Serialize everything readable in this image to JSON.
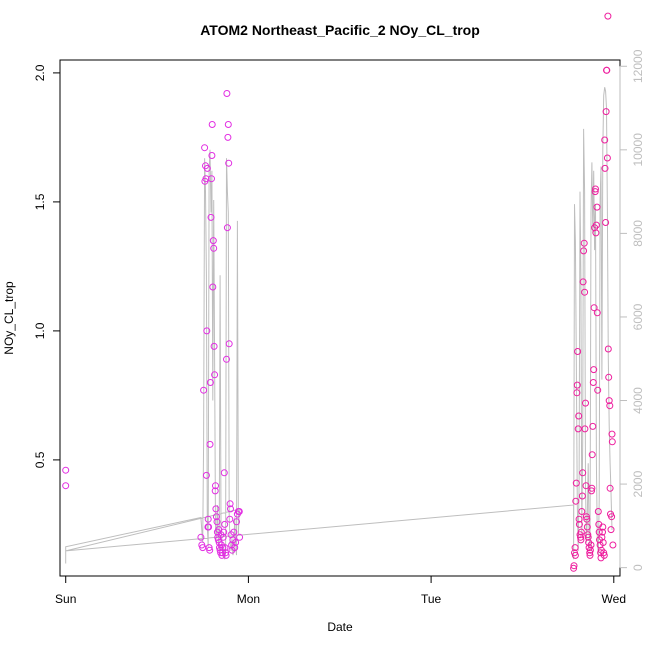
{
  "chart_data": {
    "type": "scatter",
    "title": "ATOM2 Northeast_Pacific_2 NOy_CL_trop",
    "xlabel": "Date",
    "ylabel": "NOy_CL_trop",
    "x_ticks": [
      "Sun",
      "Mon",
      "Tue",
      "Wed"
    ],
    "xlim": [
      -0.0313,
      3.034
    ],
    "ylim": [
      0.05,
      2.05
    ],
    "y_ticks": [
      0.5,
      1.0,
      1.5,
      2.0
    ],
    "y_tick_labels": [
      "0.5",
      "1.0",
      "1.5",
      "2.0"
    ],
    "y2lim": [
      -200,
      12150
    ],
    "y2_ticks": [
      0,
      2000,
      4000,
      6000,
      8000,
      10000,
      12000
    ],
    "y2_tick_labels": [
      "0",
      "2000",
      "4000",
      "6000",
      "8000",
      "10000",
      "12000"
    ],
    "grid": false,
    "colors": {
      "points_day1": "#e22ee2",
      "points_day3": "#ee1e9e",
      "secondary_line": "#bebebe",
      "secondary_axis": "#bebebe"
    },
    "series": [
      {
        "marker": "open-circle",
        "axis": "left",
        "points": [
          [
            0.0,
            0.46
          ],
          [
            0.0,
            0.4
          ],
          [
            0.74,
            0.2
          ],
          [
            0.745,
            0.17
          ],
          [
            0.75,
            0.16
          ],
          [
            0.755,
            0.77
          ],
          [
            0.76,
            1.71
          ],
          [
            0.762,
            1.58
          ],
          [
            0.765,
            1.64
          ],
          [
            0.768,
            1.59
          ],
          [
            0.77,
            0.44
          ],
          [
            0.772,
            1.0
          ],
          [
            0.775,
            1.63
          ],
          [
            0.778,
            0.24
          ],
          [
            0.78,
            0.27
          ],
          [
            0.782,
            0.24
          ],
          [
            0.785,
            0.16
          ],
          [
            0.788,
            0.15
          ],
          [
            0.79,
            0.56
          ],
          [
            0.792,
            0.8
          ],
          [
            0.795,
            1.44
          ],
          [
            0.798,
            1.59
          ],
          [
            0.8,
            1.68
          ],
          [
            0.802,
            1.8
          ],
          [
            0.805,
            1.17
          ],
          [
            0.808,
            1.35
          ],
          [
            0.81,
            1.32
          ],
          [
            0.812,
            0.94
          ],
          [
            0.815,
            0.83
          ],
          [
            0.818,
            0.38
          ],
          [
            0.82,
            0.4
          ],
          [
            0.822,
            0.31
          ],
          [
            0.825,
            0.28
          ],
          [
            0.828,
            0.26
          ],
          [
            0.83,
            0.22
          ],
          [
            0.832,
            0.2
          ],
          [
            0.835,
            0.19
          ],
          [
            0.838,
            0.23
          ],
          [
            0.84,
            0.18
          ],
          [
            0.842,
            0.16
          ],
          [
            0.845,
            0.15
          ],
          [
            0.848,
            0.14
          ],
          [
            0.85,
            0.21
          ],
          [
            0.852,
            0.17
          ],
          [
            0.855,
            0.13
          ],
          [
            0.858,
            0.14
          ],
          [
            0.86,
            0.16
          ],
          [
            0.862,
            0.2
          ],
          [
            0.865,
            0.22
          ],
          [
            0.868,
            0.45
          ],
          [
            0.87,
            0.25
          ],
          [
            0.872,
            0.16
          ],
          [
            0.875,
            0.14
          ],
          [
            0.878,
            0.13
          ],
          [
            0.88,
            0.89
          ],
          [
            0.882,
            1.92
          ],
          [
            0.885,
            1.4
          ],
          [
            0.888,
            1.75
          ],
          [
            0.89,
            1.8
          ],
          [
            0.892,
            1.65
          ],
          [
            0.895,
            0.95
          ],
          [
            0.898,
            0.27
          ],
          [
            0.9,
            0.33
          ],
          [
            0.902,
            0.31
          ],
          [
            0.905,
            0.21
          ],
          [
            0.908,
            0.17
          ],
          [
            0.91,
            0.15
          ],
          [
            0.915,
            0.19
          ],
          [
            0.92,
            0.22
          ],
          [
            0.925,
            0.16
          ],
          [
            0.93,
            0.18
          ],
          [
            0.935,
            0.26
          ],
          [
            0.94,
            0.29
          ],
          [
            0.945,
            0.3
          ],
          [
            0.95,
            0.3
          ],
          [
            0.952,
            0.2
          ],
          [
            2.78,
            0.08
          ],
          [
            2.782,
            0.09
          ],
          [
            2.785,
            0.14
          ],
          [
            2.788,
            0.16
          ],
          [
            2.79,
            0.13
          ],
          [
            2.792,
            0.34
          ],
          [
            2.795,
            0.41
          ],
          [
            2.798,
            0.76
          ],
          [
            2.8,
            0.79
          ],
          [
            2.802,
            0.92
          ],
          [
            2.805,
            0.62
          ],
          [
            2.808,
            0.67
          ],
          [
            2.81,
            0.27
          ],
          [
            2.812,
            0.25
          ],
          [
            2.815,
            0.21
          ],
          [
            2.818,
            0.2
          ],
          [
            2.82,
            0.19
          ],
          [
            2.822,
            0.22
          ],
          [
            2.825,
            0.3
          ],
          [
            2.828,
            0.36
          ],
          [
            2.83,
            0.45
          ],
          [
            2.832,
            1.19
          ],
          [
            2.835,
            1.31
          ],
          [
            2.838,
            1.34
          ],
          [
            2.84,
            1.15
          ],
          [
            2.842,
            0.62
          ],
          [
            2.845,
            0.72
          ],
          [
            2.848,
            0.4
          ],
          [
            2.85,
            0.28
          ],
          [
            2.852,
            0.27
          ],
          [
            2.855,
            0.24
          ],
          [
            2.858,
            0.21
          ],
          [
            2.86,
            0.2
          ],
          [
            2.862,
            0.18
          ],
          [
            2.865,
            0.16
          ],
          [
            2.868,
            0.14
          ],
          [
            2.87,
            0.13
          ],
          [
            2.872,
            0.15
          ],
          [
            2.875,
            0.17
          ],
          [
            2.878,
            0.38
          ],
          [
            2.88,
            0.39
          ],
          [
            2.882,
            0.52
          ],
          [
            2.885,
            0.63
          ],
          [
            2.888,
            0.8
          ],
          [
            2.89,
            0.85
          ],
          [
            2.892,
            1.09
          ],
          [
            2.895,
            1.4
          ],
          [
            2.898,
            1.54
          ],
          [
            2.9,
            1.55
          ],
          [
            2.902,
            1.38
          ],
          [
            2.905,
            1.41
          ],
          [
            2.908,
            1.48
          ],
          [
            2.91,
            1.07
          ],
          [
            2.912,
            0.77
          ],
          [
            2.915,
            0.3
          ],
          [
            2.918,
            0.25
          ],
          [
            2.92,
            0.22
          ],
          [
            2.922,
            0.19
          ],
          [
            2.925,
            0.17
          ],
          [
            2.928,
            0.14
          ],
          [
            2.93,
            0.12
          ],
          [
            2.932,
            0.15
          ],
          [
            2.935,
            0.2
          ],
          [
            2.938,
            0.22
          ],
          [
            2.94,
            0.24
          ],
          [
            2.942,
            0.18
          ],
          [
            2.945,
            0.14
          ],
          [
            2.948,
            0.13
          ],
          [
            2.95,
            1.74
          ],
          [
            2.952,
            1.63
          ],
          [
            2.955,
            1.42
          ],
          [
            2.958,
            1.85
          ],
          [
            2.96,
            2.01
          ],
          [
            2.962,
            2.01
          ],
          [
            2.965,
            1.67
          ],
          [
            2.968,
            2.22
          ],
          [
            2.97,
            0.93
          ],
          [
            2.972,
            0.82
          ],
          [
            2.975,
            0.73
          ],
          [
            2.978,
            0.71
          ],
          [
            2.98,
            0.39
          ],
          [
            2.982,
            0.29
          ],
          [
            2.985,
            0.23
          ],
          [
            2.988,
            0.28
          ],
          [
            2.99,
            0.6
          ],
          [
            2.992,
            0.57
          ],
          [
            2.995,
            0.17
          ]
        ]
      },
      {
        "type": "line",
        "axis": "right",
        "points": [
          [
            0.0,
            100
          ],
          [
            0.0,
            500
          ],
          [
            0.74,
            1200
          ],
          [
            0.75,
            600
          ],
          [
            0.755,
            3000
          ],
          [
            0.76,
            9800
          ],
          [
            0.765,
            9000
          ],
          [
            0.77,
            7000
          ],
          [
            0.775,
            1000
          ],
          [
            0.78,
            500
          ],
          [
            0.785,
            9500
          ],
          [
            0.79,
            10000
          ],
          [
            0.795,
            8500
          ],
          [
            0.8,
            9500
          ],
          [
            0.805,
            4000
          ],
          [
            0.81,
            8800
          ],
          [
            0.815,
            5000
          ],
          [
            0.82,
            900
          ],
          [
            0.825,
            700
          ],
          [
            0.83,
            1500
          ],
          [
            0.835,
            600
          ],
          [
            0.84,
            400
          ],
          [
            0.845,
            7000
          ],
          [
            0.85,
            1000
          ],
          [
            0.86,
            300
          ],
          [
            0.865,
            500
          ],
          [
            0.87,
            200
          ],
          [
            0.875,
            400
          ],
          [
            0.88,
            9800
          ],
          [
            0.885,
            9000
          ],
          [
            0.89,
            8500
          ],
          [
            0.895,
            1200
          ],
          [
            0.9,
            600
          ],
          [
            0.905,
            400
          ],
          [
            0.91,
            700
          ],
          [
            0.915,
            300
          ],
          [
            0.92,
            400
          ],
          [
            0.925,
            1200
          ],
          [
            0.93,
            600
          ],
          [
            0.935,
            300
          ],
          [
            0.94,
            8300
          ],
          [
            0.945,
            800
          ],
          [
            0.95,
            1400
          ],
          [
            0.0,
            400
          ],
          [
            2.78,
            1500
          ],
          [
            2.78,
            200
          ],
          [
            2.782,
            3500
          ],
          [
            2.785,
            8700
          ],
          [
            2.79,
            7800
          ],
          [
            2.795,
            5000
          ],
          [
            2.8,
            1500
          ],
          [
            2.805,
            400
          ],
          [
            2.81,
            2000
          ],
          [
            2.815,
            9000
          ],
          [
            2.82,
            7000
          ],
          [
            2.825,
            800
          ],
          [
            2.83,
            3000
          ],
          [
            2.835,
            10500
          ],
          [
            2.84,
            9000
          ],
          [
            2.845,
            2000
          ],
          [
            2.85,
            600
          ],
          [
            2.855,
            1200
          ],
          [
            2.86,
            2500
          ],
          [
            2.865,
            800
          ],
          [
            2.87,
            400
          ],
          [
            2.875,
            8500
          ],
          [
            2.88,
            9700
          ],
          [
            2.885,
            8000
          ],
          [
            2.89,
            9500
          ],
          [
            2.895,
            7600
          ],
          [
            2.9,
            8700
          ],
          [
            2.905,
            2500
          ],
          [
            2.91,
            700
          ],
          [
            2.915,
            300
          ],
          [
            2.92,
            1600
          ],
          [
            2.925,
            8800
          ],
          [
            2.93,
            9600
          ],
          [
            2.935,
            4500
          ],
          [
            2.94,
            10000
          ],
          [
            2.945,
            11300
          ],
          [
            2.95,
            11500
          ],
          [
            2.955,
            11400
          ],
          [
            2.96,
            11000
          ],
          [
            2.965,
            8500
          ],
          [
            2.97,
            5000
          ],
          [
            2.975,
            3400
          ],
          [
            2.98,
            2500
          ],
          [
            2.985,
            1800
          ],
          [
            2.99,
            900
          ]
        ]
      }
    ]
  }
}
